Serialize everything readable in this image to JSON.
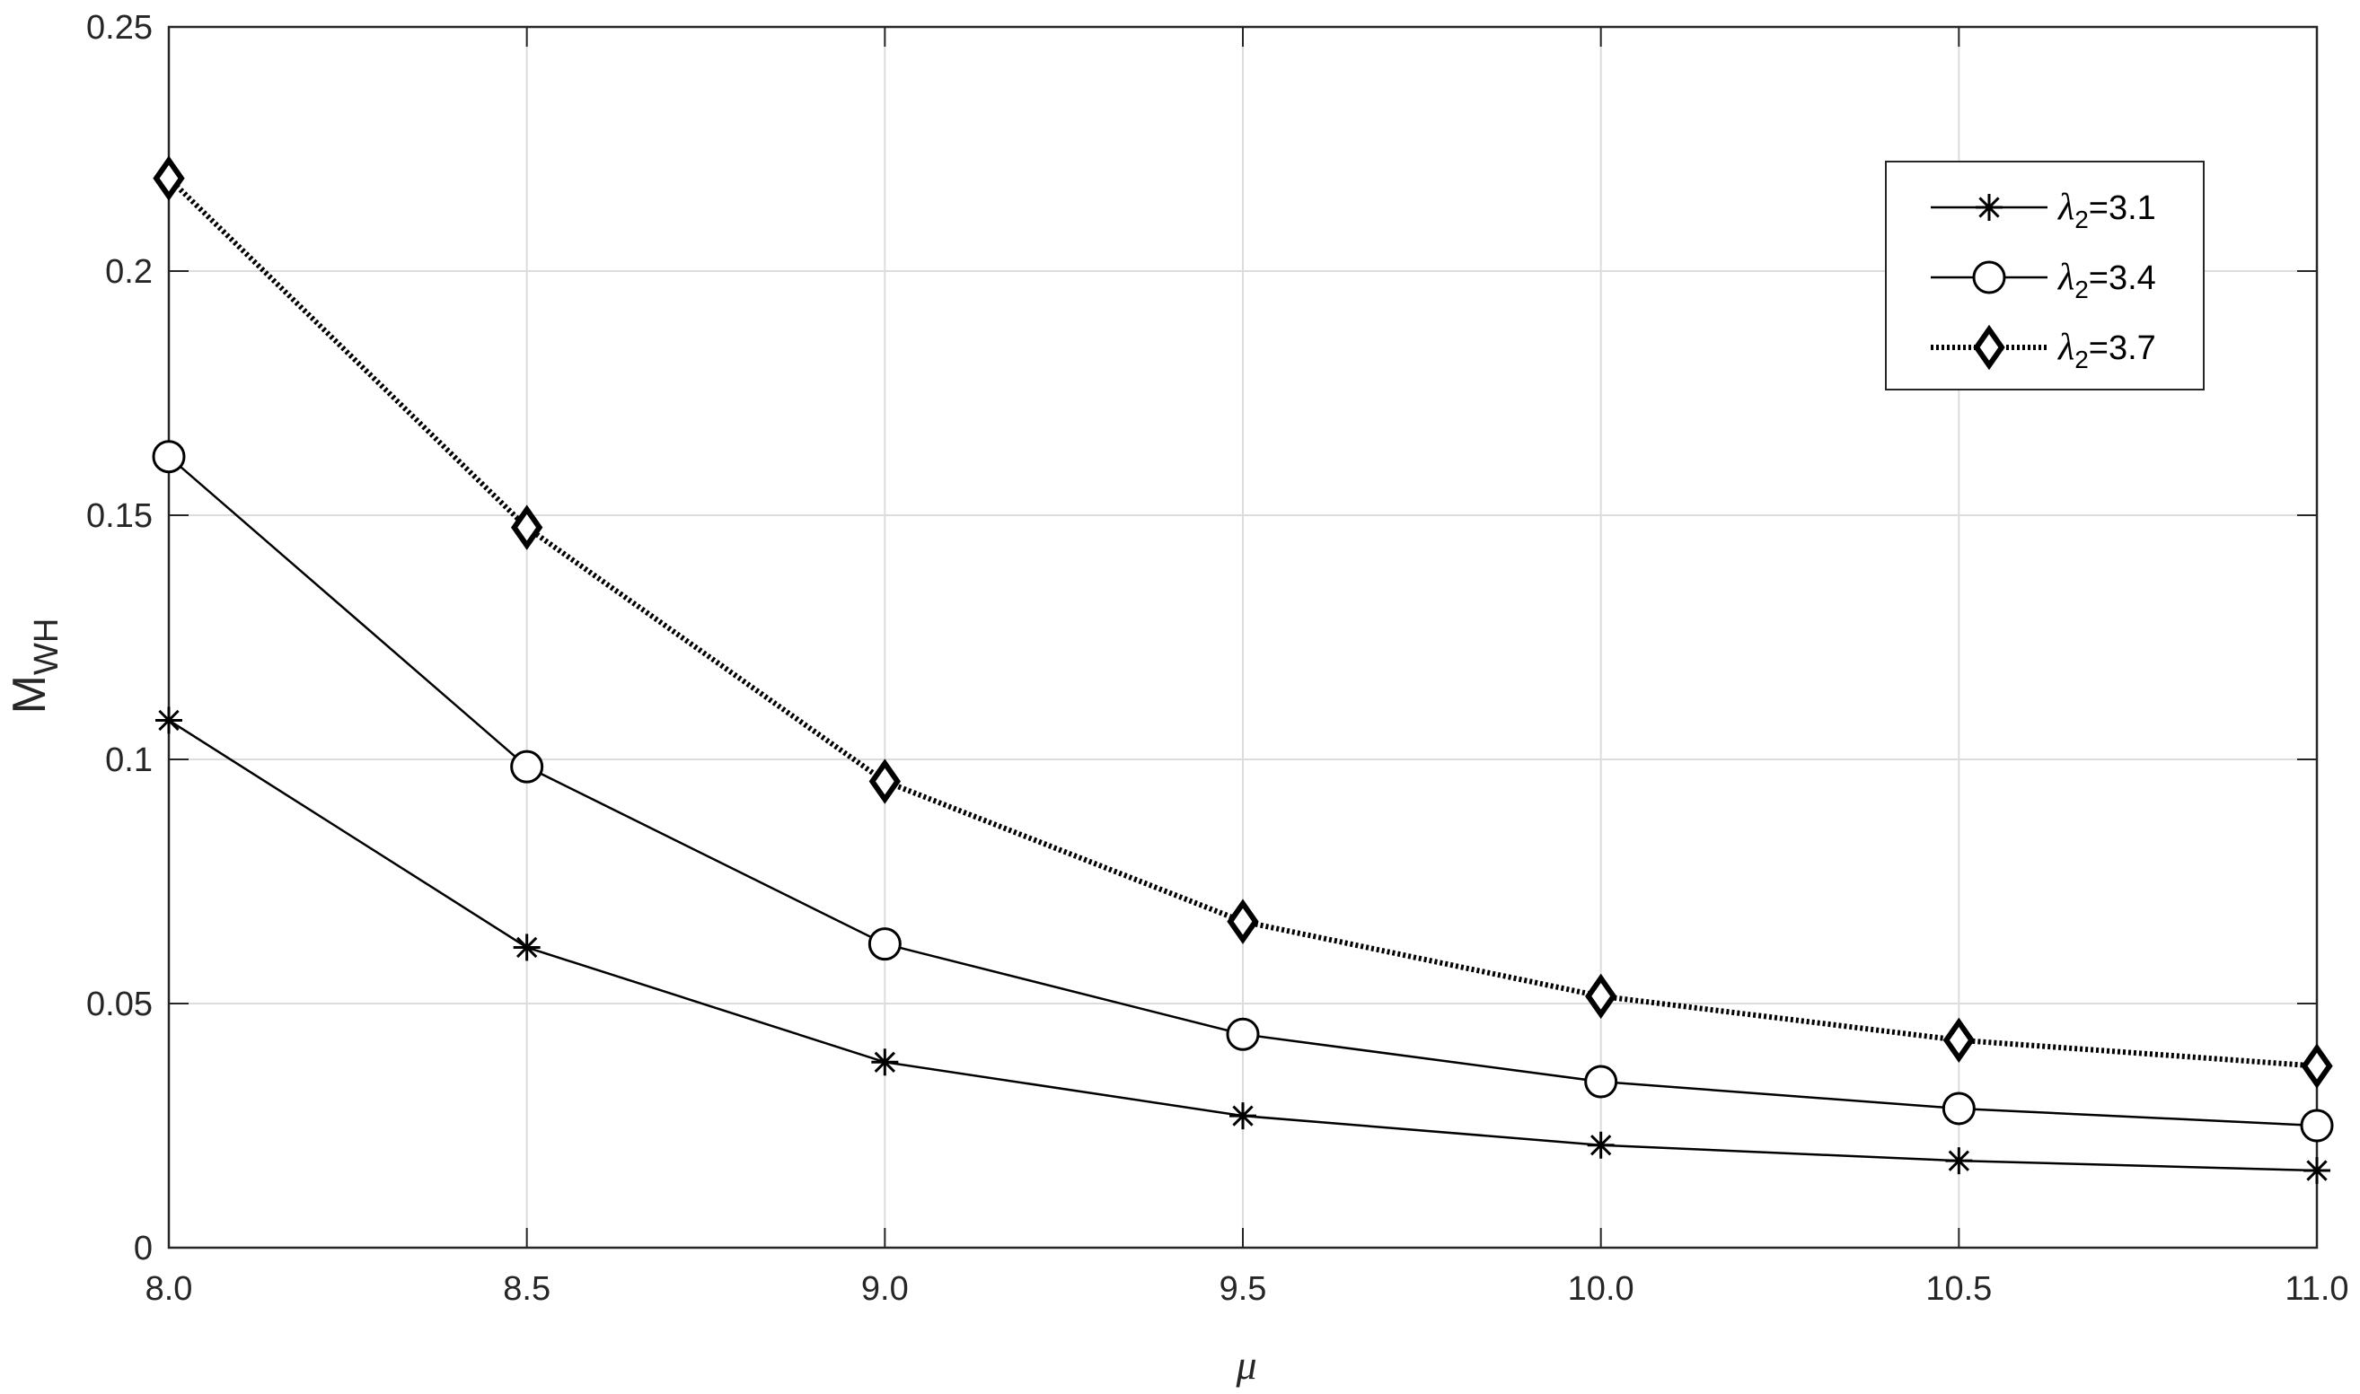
{
  "chart_data": {
    "type": "line",
    "title": "",
    "xlabel": "μ",
    "ylabel": {
      "main": "M",
      "sub": "WH"
    },
    "x": [
      8.0,
      8.5,
      9.0,
      9.5,
      10.0,
      10.5,
      11.0
    ],
    "xlim": [
      8.0,
      11.0
    ],
    "ylim": [
      0,
      0.25
    ],
    "xticks": [
      "8.0",
      "8.5",
      "9.0",
      "9.5",
      "10.0",
      "10.5",
      "11.0"
    ],
    "yticks": [
      {
        "value": 0,
        "label": "0"
      },
      {
        "value": 0.05,
        "label": "0.05"
      },
      {
        "value": 0.1,
        "label": "0.1"
      },
      {
        "value": 0.15,
        "label": "0.15"
      },
      {
        "value": 0.2,
        "label": "0.2"
      },
      {
        "value": 0.25,
        "label": "0.25"
      }
    ],
    "grid": true,
    "legend_position": "top-right",
    "series": [
      {
        "name": {
          "lambda": "λ",
          "sub": "2",
          "rest": "=3.1"
        },
        "marker": "asterisk",
        "line": "solid",
        "values": [
          0.108,
          0.0615,
          0.038,
          0.027,
          0.021,
          0.0178,
          0.0158
        ]
      },
      {
        "name": {
          "lambda": "λ",
          "sub": "2",
          "rest": "=3.4"
        },
        "marker": "circle",
        "line": "solid",
        "values": [
          0.162,
          0.0985,
          0.0622,
          0.0437,
          0.034,
          0.0285,
          0.025
        ]
      },
      {
        "name": {
          "lambda": "λ",
          "sub": "2",
          "rest": "=3.7"
        },
        "marker": "diamond",
        "line": "dotted",
        "values": [
          0.219,
          0.1475,
          0.0955,
          0.0668,
          0.0515,
          0.0425,
          0.0372
        ]
      }
    ]
  }
}
